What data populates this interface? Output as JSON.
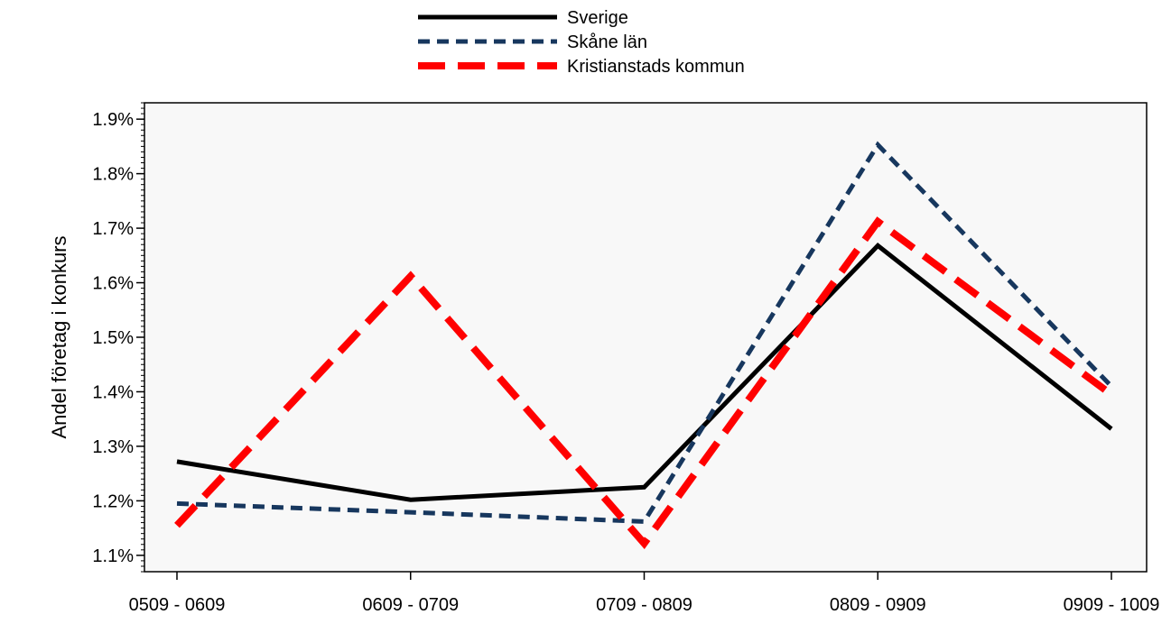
{
  "chart_data": {
    "type": "line",
    "title": "",
    "xlabel": "",
    "ylabel": "Andel företag i konkurs",
    "categories": [
      "0509 - 0609",
      "0609 - 0709",
      "0709 - 0809",
      "0809 - 0909",
      "0909 - 1009"
    ],
    "ylim": [
      1.07,
      1.93
    ],
    "yticks": [
      1.1,
      1.2,
      1.3,
      1.4,
      1.5,
      1.6,
      1.7,
      1.8,
      1.9
    ],
    "ytick_labels": [
      "1.1%",
      "1.2%",
      "1.3%",
      "1.4%",
      "1.5%",
      "1.6%",
      "1.7%",
      "1.8%",
      "1.9%"
    ],
    "y_unit": "%",
    "grid": false,
    "legend_position": "top-center",
    "plot_background": "#f8f8f8",
    "series": [
      {
        "name": "Sverige",
        "values": [
          1.272,
          1.202,
          1.225,
          1.668,
          1.332
        ],
        "color": "#000000",
        "style": "solid"
      },
      {
        "name": "Skåne län",
        "values": [
          1.195,
          1.179,
          1.162,
          1.853,
          1.41
        ],
        "color": "#17375e",
        "style": "dotted"
      },
      {
        "name": "Kristianstads kommun",
        "values": [
          1.155,
          1.612,
          1.122,
          1.712,
          1.395
        ],
        "color": "#ff0000",
        "style": "dashed"
      }
    ]
  }
}
